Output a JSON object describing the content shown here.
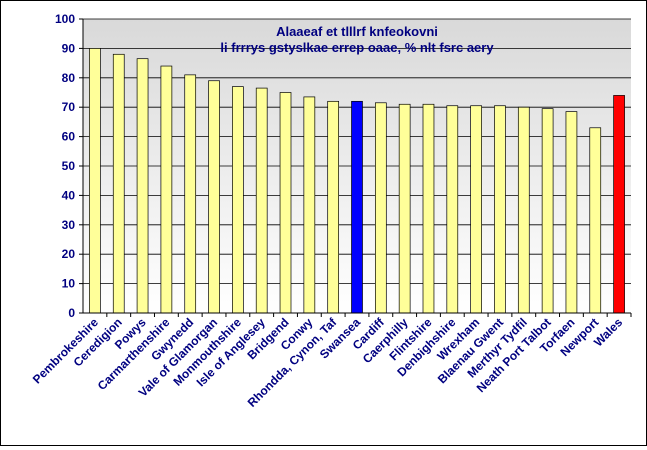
{
  "chart_data": {
    "type": "bar",
    "title_lines": [
      "Alaaeaf et tlllrf knfeokovni",
      "li frrrys gstyslkae errep oaae, % nlt fsrc aery"
    ],
    "xlabel": "",
    "ylabel": "",
    "ylim": [
      0,
      100
    ],
    "yticks": [
      0,
      10,
      20,
      30,
      40,
      50,
      60,
      70,
      80,
      90,
      100
    ],
    "grid": true,
    "legend": "none",
    "categories": [
      "Pembrokeshire",
      "Ceredigion",
      "Powys",
      "Carmarthenshire",
      "Gwynedd",
      "Vale of Glamorgan",
      "Monmouthshire",
      "Isle of Anglesey",
      "Bridgend",
      "Conwy",
      "Rhondda, Cynon, Taf",
      "Swansea",
      "Cardiff",
      "Caerphilly",
      "Flintshire",
      "Denbighshire",
      "Wrexham",
      "Blaenau Gwent",
      "Merthyr Tydfil",
      "Neath Port Talbot",
      "Torfaen",
      "Newport",
      "Wales"
    ],
    "values": [
      90,
      88,
      86.5,
      84,
      81,
      79,
      77,
      76.5,
      75,
      73.5,
      72,
      72,
      71.5,
      71,
      71,
      70.5,
      70.5,
      70.5,
      70,
      69.5,
      68.5,
      63,
      74
    ],
    "colors": {
      "default": "#FFFF99",
      "highlight_swansea": "#0000FF",
      "highlight_wales": "#FF0000",
      "bar_outline": "#000000",
      "plot_bg_top": "#D9D9D9",
      "plot_bg_bottom": "#FFFFFF",
      "text": "#000080"
    },
    "bar_colors": [
      "#FFFF99",
      "#FFFF99",
      "#FFFF99",
      "#FFFF99",
      "#FFFF99",
      "#FFFF99",
      "#FFFF99",
      "#FFFF99",
      "#FFFF99",
      "#FFFF99",
      "#FFFF99",
      "#0000FF",
      "#FFFF99",
      "#FFFF99",
      "#FFFF99",
      "#FFFF99",
      "#FFFF99",
      "#FFFF99",
      "#FFFF99",
      "#FFFF99",
      "#FFFF99",
      "#FFFF99",
      "#FF0000"
    ]
  }
}
